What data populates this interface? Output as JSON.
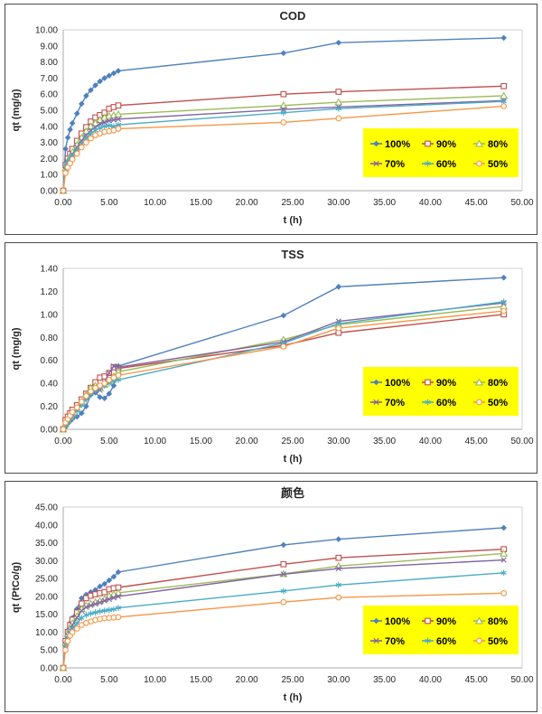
{
  "palette": {
    "legend_bg": "#FFFF00",
    "axis_color": "#ababab",
    "plot_border": "#d2d2d2",
    "text_color": "#262626",
    "series_colors": [
      "#4F81BD",
      "#C0504D",
      "#9BBB59",
      "#8064A2",
      "#4BACC6",
      "#F79646"
    ]
  },
  "chart_data": [
    {
      "type": "line",
      "title": "COD",
      "xlabel": "t (h)",
      "ylabel": "qt (mg/g)",
      "xlim": [
        0,
        50
      ],
      "xtick_step": 5,
      "ylim": [
        0,
        10
      ],
      "ytick_step": 1,
      "tick_decimals": 2,
      "grid": false,
      "legend": {
        "position": "lower-right",
        "bg": "#FFFF00"
      },
      "x": [
        0,
        0.25,
        0.5,
        0.75,
        1,
        1.5,
        2,
        2.5,
        3,
        3.5,
        4,
        4.5,
        5,
        5.5,
        6,
        24,
        30,
        48
      ],
      "series": [
        {
          "name": "100%",
          "color": "#4F81BD",
          "marker": "diamond",
          "values": [
            0,
            2.6,
            3.3,
            3.8,
            4.2,
            4.8,
            5.4,
            5.9,
            6.25,
            6.55,
            6.8,
            7.0,
            7.15,
            7.3,
            7.45,
            8.55,
            9.2,
            9.5
          ]
        },
        {
          "name": "90%",
          "color": "#C0504D",
          "marker": "square",
          "values": [
            0,
            1.6,
            2.0,
            2.3,
            2.6,
            3.1,
            3.55,
            3.95,
            4.3,
            4.55,
            4.7,
            4.85,
            5.1,
            5.2,
            5.3,
            6.0,
            6.15,
            6.5
          ]
        },
        {
          "name": "80%",
          "color": "#9BBB59",
          "marker": "triangle",
          "values": [
            0,
            1.4,
            1.8,
            2.1,
            2.4,
            2.85,
            3.3,
            3.7,
            4.0,
            4.2,
            4.4,
            4.55,
            4.65,
            4.7,
            4.75,
            5.3,
            5.5,
            5.9
          ]
        },
        {
          "name": "70%",
          "color": "#8064A2",
          "marker": "x",
          "values": [
            0,
            1.3,
            1.7,
            2.0,
            2.25,
            2.7,
            3.1,
            3.45,
            3.75,
            3.95,
            4.15,
            4.25,
            4.35,
            4.4,
            4.45,
            5.05,
            5.2,
            5.6
          ]
        },
        {
          "name": "60%",
          "color": "#4BACC6",
          "marker": "asterisk",
          "values": [
            0,
            1.6,
            1.85,
            2.05,
            2.2,
            2.55,
            2.9,
            3.25,
            3.55,
            3.75,
            3.9,
            4.0,
            4.05,
            4.0,
            4.1,
            4.85,
            5.1,
            5.55
          ]
        },
        {
          "name": "50%",
          "color": "#F79646",
          "marker": "circle",
          "values": [
            0,
            1.1,
            1.45,
            1.7,
            1.95,
            2.3,
            2.7,
            3.0,
            3.25,
            3.45,
            3.55,
            3.65,
            3.7,
            3.75,
            3.85,
            4.25,
            4.5,
            5.25
          ]
        }
      ]
    },
    {
      "type": "line",
      "title": "TSS",
      "xlabel": "t (h)",
      "ylabel": "qt (mg/g)",
      "xlim": [
        0,
        50
      ],
      "xtick_step": 5,
      "ylim": [
        0,
        1.4
      ],
      "ytick_step": 0.2,
      "tick_decimals": 2,
      "grid": false,
      "legend": {
        "position": "lower-right",
        "bg": "#FFFF00"
      },
      "x": [
        0,
        0.25,
        0.5,
        0.75,
        1,
        1.5,
        2,
        2.5,
        3,
        3.5,
        4,
        4.5,
        5,
        5.5,
        6,
        24,
        30,
        48
      ],
      "series": [
        {
          "name": "100%",
          "color": "#4F81BD",
          "marker": "diamond",
          "values": [
            0,
            0.02,
            0.05,
            0.07,
            0.09,
            0.11,
            0.14,
            0.2,
            0.3,
            0.32,
            0.28,
            0.27,
            0.31,
            0.38,
            0.55,
            0.99,
            1.24,
            1.32
          ]
        },
        {
          "name": "90%",
          "color": "#C0504D",
          "marker": "square",
          "values": [
            0,
            0.08,
            0.11,
            0.14,
            0.17,
            0.21,
            0.26,
            0.31,
            0.36,
            0.41,
            0.45,
            0.46,
            0.49,
            0.54,
            0.53,
            0.73,
            0.84,
            1.0
          ]
        },
        {
          "name": "80%",
          "color": "#9BBB59",
          "marker": "triangle",
          "values": [
            0,
            0.05,
            0.08,
            0.11,
            0.14,
            0.18,
            0.24,
            0.3,
            0.36,
            0.38,
            0.36,
            0.39,
            0.42,
            0.46,
            0.5,
            0.78,
            0.91,
            1.07
          ]
        },
        {
          "name": "70%",
          "color": "#8064A2",
          "marker": "x",
          "values": [
            0,
            0.04,
            0.07,
            0.1,
            0.13,
            0.17,
            0.22,
            0.28,
            0.33,
            0.35,
            0.34,
            0.41,
            0.49,
            0.55,
            0.54,
            0.76,
            0.94,
            1.1
          ]
        },
        {
          "name": "60%",
          "color": "#4BACC6",
          "marker": "asterisk",
          "values": [
            0,
            0.03,
            0.06,
            0.09,
            0.12,
            0.16,
            0.21,
            0.26,
            0.31,
            0.34,
            0.36,
            0.38,
            0.4,
            0.42,
            0.43,
            0.75,
            0.92,
            1.11
          ]
        },
        {
          "name": "50%",
          "color": "#F79646",
          "marker": "circle",
          "values": [
            0,
            0.06,
            0.09,
            0.12,
            0.15,
            0.19,
            0.24,
            0.29,
            0.33,
            0.36,
            0.38,
            0.4,
            0.43,
            0.45,
            0.47,
            0.72,
            0.88,
            1.03
          ]
        }
      ]
    },
    {
      "type": "line",
      "title": "颜色",
      "xlabel": "t (h)",
      "ylabel": "qt (PtCo/g)",
      "xlim": [
        0,
        50
      ],
      "xtick_step": 5,
      "ylim": [
        0,
        45
      ],
      "ytick_step": 5,
      "tick_decimals": 2,
      "grid": false,
      "legend": {
        "position": "lower-right",
        "bg": "#FFFF00"
      },
      "x": [
        0,
        0.25,
        0.5,
        0.75,
        1,
        1.5,
        2,
        2.5,
        3,
        3.5,
        4,
        4.5,
        5,
        5.5,
        6,
        24,
        30,
        48
      ],
      "series": [
        {
          "name": "100%",
          "color": "#4F81BD",
          "marker": "diamond",
          "values": [
            0,
            7.8,
            10.5,
            12.5,
            14.0,
            16.5,
            19.5,
            20.5,
            21.2,
            21.8,
            22.8,
            23.5,
            24.5,
            25.5,
            26.8,
            34.4,
            36.0,
            39.2
          ]
        },
        {
          "name": "90%",
          "color": "#C0504D",
          "marker": "square",
          "values": [
            0,
            7.5,
            10.0,
            12.0,
            13.5,
            15.5,
            18.0,
            19.5,
            20.2,
            20.6,
            20.9,
            21.2,
            22.0,
            22.3,
            22.5,
            29.0,
            30.8,
            33.2
          ]
        },
        {
          "name": "80%",
          "color": "#9BBB59",
          "marker": "triangle",
          "values": [
            0,
            7.0,
            9.5,
            11.0,
            12.5,
            14.5,
            16.5,
            17.5,
            18.0,
            18.4,
            18.8,
            19.3,
            20.2,
            20.6,
            21.0,
            26.3,
            28.5,
            32.0
          ]
        },
        {
          "name": "70%",
          "color": "#8064A2",
          "marker": "x",
          "values": [
            0,
            6.5,
            9.0,
            10.5,
            12.0,
            14.0,
            16.0,
            17.0,
            17.5,
            17.9,
            18.3,
            18.8,
            19.2,
            19.6,
            20.0,
            26.2,
            27.8,
            30.2
          ]
        },
        {
          "name": "60%",
          "color": "#4BACC6",
          "marker": "asterisk",
          "values": [
            0,
            6.0,
            8.5,
            10.0,
            11.0,
            12.5,
            14.0,
            14.8,
            15.2,
            15.5,
            15.8,
            16.0,
            16.2,
            16.4,
            16.8,
            21.5,
            23.2,
            26.6
          ]
        },
        {
          "name": "50%",
          "color": "#F79646",
          "marker": "circle",
          "values": [
            0,
            5.0,
            7.5,
            9.0,
            10.0,
            11.0,
            12.0,
            12.6,
            13.0,
            13.4,
            13.7,
            13.9,
            14.0,
            14.1,
            14.2,
            18.4,
            19.7,
            20.9
          ]
        }
      ]
    }
  ]
}
